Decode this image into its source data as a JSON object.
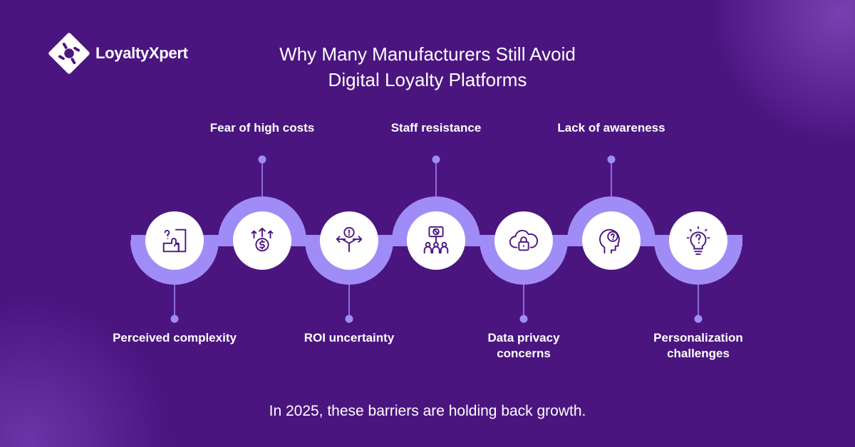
{
  "brand": {
    "name": "LoyaltyXpert"
  },
  "title": {
    "line1": "Why Many Manufacturers Still Avoid",
    "line2": "Digital Loyalty Platforms"
  },
  "steps": [
    {
      "label": "Perceived complexity",
      "position": "below",
      "icon": "puzzle-question-icon"
    },
    {
      "label": "Fear of high costs",
      "position": "above",
      "icon": "dollar-coin-arrows-icon"
    },
    {
      "label": "ROI uncertainty",
      "position": "below",
      "icon": "diverging-arrows-alert-icon"
    },
    {
      "label": "Staff resistance",
      "position": "above",
      "icon": "protest-sign-people-icon"
    },
    {
      "label": "Data privacy concerns",
      "position": "below",
      "icon": "cloud-lock-icon"
    },
    {
      "label": "Lack of awareness",
      "position": "above",
      "icon": "head-question-icon"
    },
    {
      "label": "Personalization challenges",
      "position": "below",
      "icon": "lightbulb-question-icon"
    }
  ],
  "footer": "In 2025, these barriers are holding back growth.",
  "colors": {
    "background": "#4b1580",
    "ring": "#a08cf6",
    "band": "#a08cf6",
    "icon_stroke": "#4b1580"
  }
}
